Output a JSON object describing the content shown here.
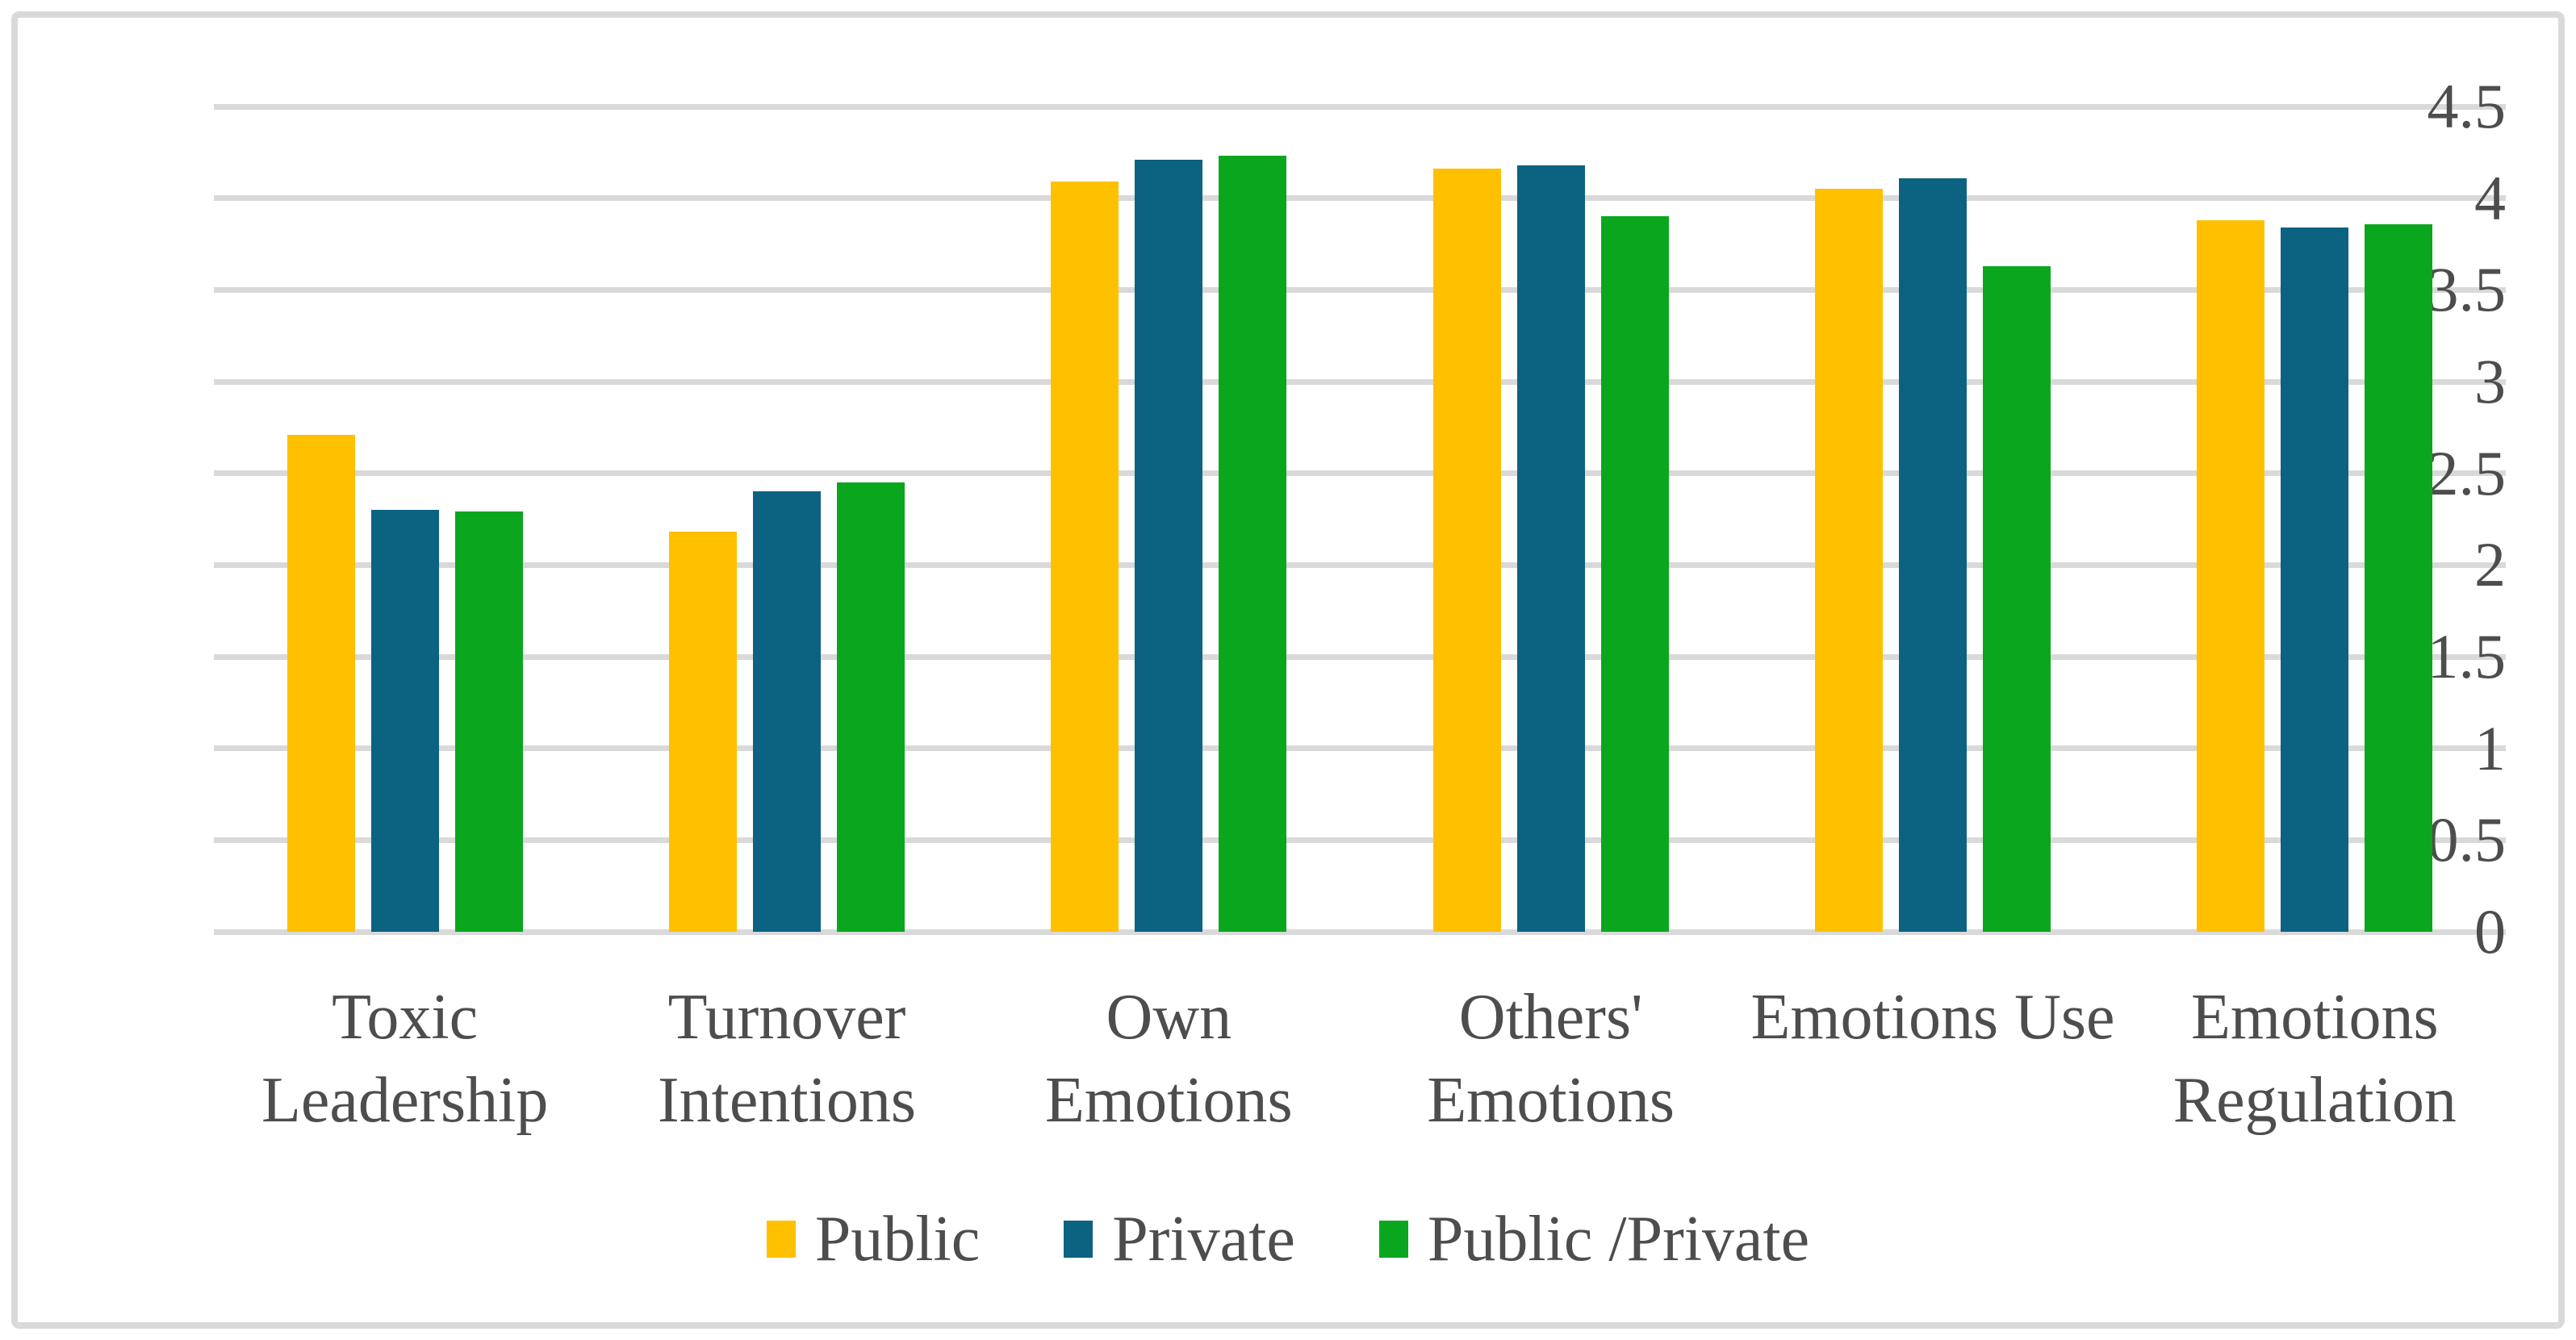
{
  "chart_data": {
    "type": "bar",
    "title": "",
    "xlabel": "",
    "ylabel": "",
    "categories": [
      "Toxic Leadership",
      "Turnover Intentions",
      "Own Emotions",
      "Others' Emotions",
      "Emotions Use",
      "Emotions Regulation"
    ],
    "category_lines": [
      [
        "Toxic",
        "Leadership"
      ],
      [
        "Turnover",
        "Intentions"
      ],
      [
        "Own",
        "Emotions"
      ],
      [
        "Others'",
        "Emotions"
      ],
      [
        "Emotions Use"
      ],
      [
        "Emotions",
        "Regulation"
      ]
    ],
    "series": [
      {
        "name": "Public",
        "color": "#FFC000",
        "values": [
          2.71,
          2.18,
          4.09,
          4.16,
          4.05,
          3.88
        ]
      },
      {
        "name": "Private",
        "color": "#0B6281",
        "values": [
          2.3,
          2.4,
          4.21,
          4.18,
          4.11,
          3.84
        ]
      },
      {
        "name": "Public /Private",
        "color": "#0AA71E",
        "values": [
          2.29,
          2.45,
          4.23,
          3.9,
          3.63,
          3.86
        ]
      }
    ],
    "ylim": [
      0,
      4.5
    ],
    "ytick_step": 0.5,
    "ytick_labels": [
      "0",
      "0.5",
      "1",
      "1.5",
      "2",
      "2.5",
      "3",
      "3.5",
      "4",
      "4.5"
    ],
    "grid": true,
    "legend_position": "bottom"
  },
  "colors": {
    "background": "#FFFFFF",
    "border": "#D9D9D9",
    "gridline": "#D9D9D9",
    "axis": "#D9D9D9",
    "text": "#4D4D4D"
  }
}
